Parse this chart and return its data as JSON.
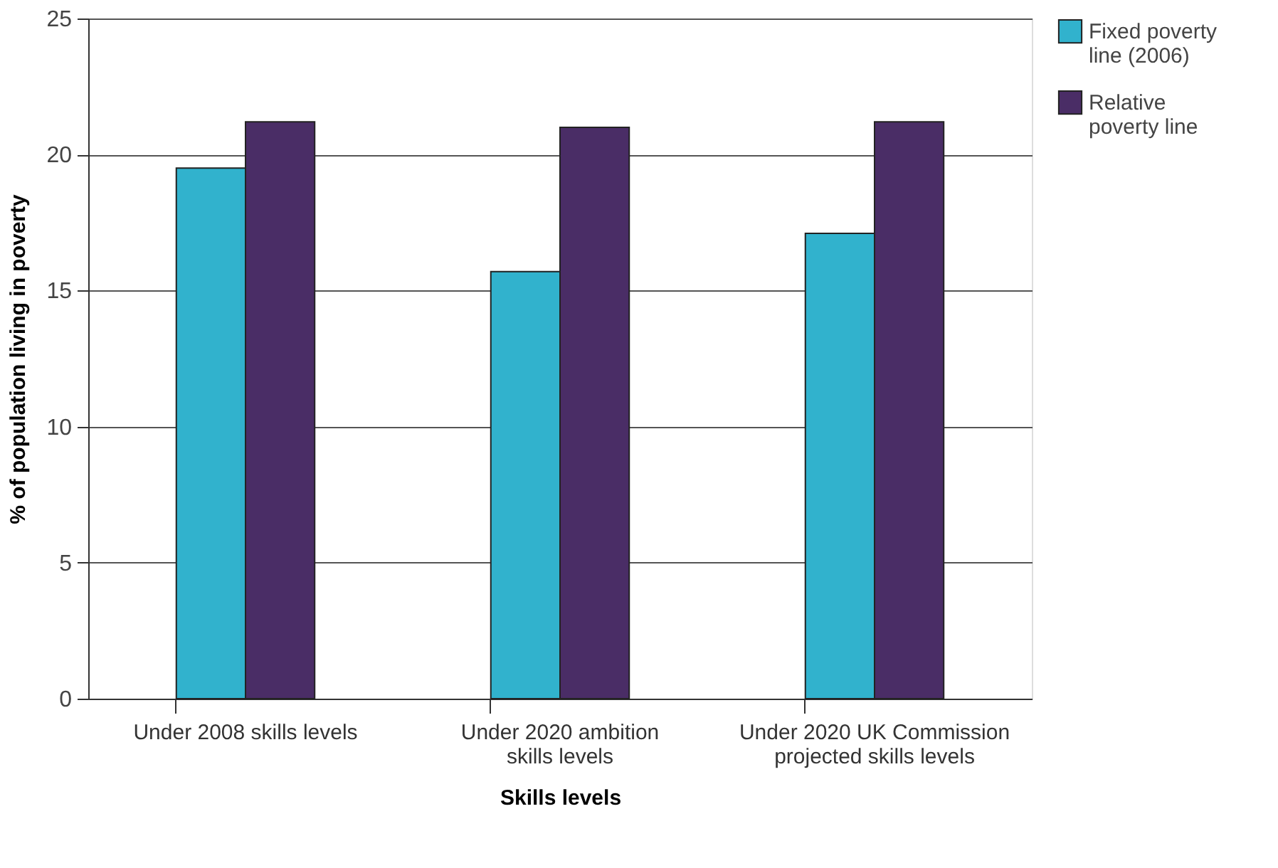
{
  "chart_data": {
    "type": "bar",
    "xlabel": "Skills levels",
    "ylabel": "% of population living in poverty",
    "categories": [
      "Under 2008 skills levels",
      "Under 2020 ambition skills levels",
      "Under 2020 UK Commission projected skills levels"
    ],
    "series": [
      {
        "name": "Fixed poverty line (2006)",
        "color": "#31b2cd",
        "values": [
          19.5,
          15.7,
          17.1
        ]
      },
      {
        "name": "Relative poverty line",
        "color": "#4a2d66",
        "values": [
          21.2,
          21.0,
          21.2
        ]
      }
    ],
    "ylim": [
      0,
      25
    ],
    "yticks": [
      0,
      5,
      10,
      15,
      20,
      25
    ],
    "grid": "y",
    "legend": "right"
  }
}
